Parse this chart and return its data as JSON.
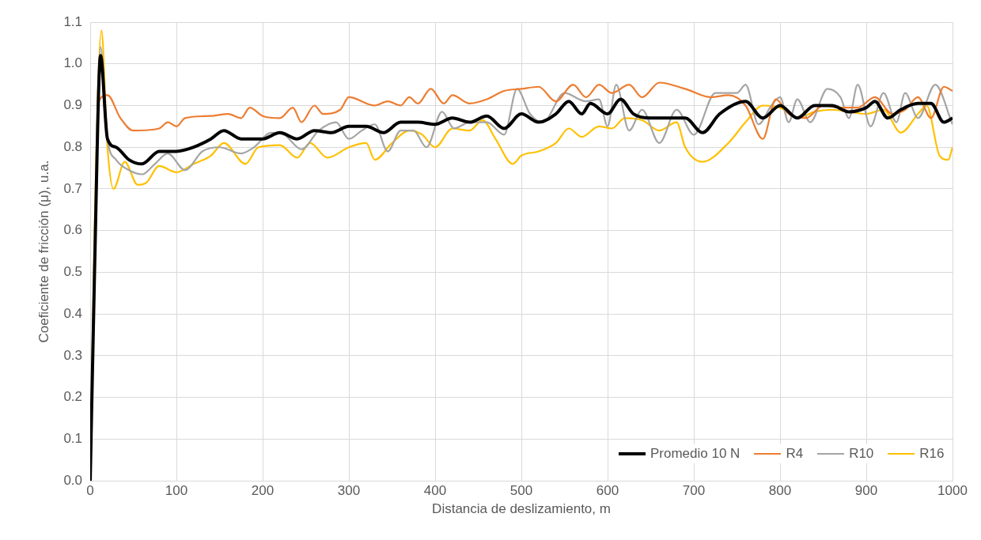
{
  "chart_data": {
    "type": "line",
    "xlabel": "Distancia de deslizamiento, m",
    "ylabel": "Coeficiente de fricción (μ), u.a.",
    "xlim": [
      0,
      1000
    ],
    "xticks": [
      0,
      100,
      200,
      300,
      400,
      500,
      600,
      700,
      800,
      900,
      1000
    ],
    "ylim": [
      0,
      1.1
    ],
    "yticks": [
      {
        "value": 0,
        "label": "0.0"
      },
      {
        "value": 0.1,
        "label": "0.1"
      },
      {
        "value": 0.2,
        "label": "0.2"
      },
      {
        "value": 0.3,
        "label": "0.3"
      },
      {
        "value": 0.4,
        "label": "0.4"
      },
      {
        "value": 0.5,
        "label": "0.5"
      },
      {
        "value": 0.6,
        "label": "0.6"
      },
      {
        "value": 0.7,
        "label": "0.7"
      },
      {
        "value": 0.8,
        "label": "0.8"
      },
      {
        "value": 0.9,
        "label": "0.9"
      },
      {
        "value": 1,
        "label": "1.0"
      },
      {
        "value": 1.1,
        "label": "1.1"
      }
    ],
    "grid": true,
    "legend": "bottom right",
    "marker": "none",
    "line_style": "solid",
    "series": [
      {
        "name": "Promedio 10 N",
        "color": "#000000",
        "x": [
          0,
          5,
          12,
          20,
          30,
          45,
          60,
          80,
          100,
          120,
          140,
          155,
          175,
          200,
          220,
          240,
          260,
          280,
          300,
          320,
          340,
          360,
          380,
          400,
          420,
          440,
          460,
          480,
          500,
          520,
          540,
          555,
          570,
          580,
          600,
          615,
          630,
          650,
          670,
          690,
          710,
          730,
          760,
          780,
          800,
          820,
          840,
          860,
          880,
          900,
          910,
          925,
          940,
          960,
          975,
          990,
          1000
        ],
        "values": [
          0,
          0.5,
          1.02,
          0.82,
          0.8,
          0.77,
          0.76,
          0.79,
          0.79,
          0.8,
          0.82,
          0.84,
          0.82,
          0.82,
          0.835,
          0.82,
          0.84,
          0.835,
          0.85,
          0.85,
          0.835,
          0.86,
          0.86,
          0.855,
          0.87,
          0.86,
          0.875,
          0.845,
          0.88,
          0.86,
          0.88,
          0.91,
          0.88,
          0.905,
          0.88,
          0.915,
          0.88,
          0.87,
          0.87,
          0.87,
          0.835,
          0.88,
          0.91,
          0.87,
          0.9,
          0.87,
          0.9,
          0.9,
          0.885,
          0.895,
          0.91,
          0.87,
          0.89,
          0.905,
          0.905,
          0.86,
          0.87
        ]
      },
      {
        "name": "R4",
        "color": "#ed7d31",
        "x": [
          0,
          5,
          10,
          20,
          35,
          50,
          80,
          90,
          100,
          110,
          140,
          160,
          175,
          185,
          200,
          220,
          235,
          245,
          260,
          270,
          290,
          300,
          330,
          345,
          360,
          370,
          380,
          395,
          410,
          420,
          440,
          460,
          480,
          500,
          520,
          540,
          560,
          575,
          590,
          605,
          625,
          640,
          660,
          690,
          720,
          740,
          760,
          780,
          795,
          810,
          830,
          850,
          870,
          890,
          910,
          930,
          945,
          960,
          975,
          990,
          1000
        ],
        "values": [
          0,
          0.5,
          0.91,
          0.925,
          0.87,
          0.84,
          0.845,
          0.86,
          0.85,
          0.87,
          0.875,
          0.88,
          0.87,
          0.895,
          0.875,
          0.87,
          0.895,
          0.86,
          0.9,
          0.88,
          0.89,
          0.92,
          0.9,
          0.91,
          0.9,
          0.92,
          0.905,
          0.94,
          0.905,
          0.925,
          0.905,
          0.915,
          0.935,
          0.94,
          0.945,
          0.91,
          0.95,
          0.92,
          0.95,
          0.93,
          0.95,
          0.92,
          0.955,
          0.94,
          0.92,
          0.925,
          0.9,
          0.82,
          0.915,
          0.88,
          0.87,
          0.9,
          0.895,
          0.895,
          0.92,
          0.88,
          0.89,
          0.92,
          0.87,
          0.945,
          0.935
        ]
      },
      {
        "name": "R10",
        "color": "#a5a5a5",
        "x": [
          0,
          5,
          12,
          20,
          30,
          45,
          60,
          75,
          90,
          110,
          130,
          150,
          175,
          190,
          210,
          225,
          245,
          265,
          285,
          300,
          315,
          330,
          345,
          360,
          375,
          390,
          408,
          422,
          440,
          460,
          480,
          495,
          510,
          525,
          550,
          575,
          590,
          600,
          610,
          625,
          640,
          660,
          680,
          700,
          725,
          750,
          760,
          775,
          790,
          800,
          810,
          820,
          835,
          855,
          870,
          880,
          890,
          905,
          920,
          935,
          945,
          960,
          980,
          1000
        ],
        "values": [
          0,
          0.5,
          1.04,
          0.82,
          0.77,
          0.745,
          0.735,
          0.76,
          0.785,
          0.745,
          0.79,
          0.8,
          0.785,
          0.8,
          0.835,
          0.83,
          0.795,
          0.84,
          0.86,
          0.82,
          0.84,
          0.855,
          0.79,
          0.84,
          0.84,
          0.8,
          0.885,
          0.845,
          0.86,
          0.86,
          0.83,
          0.94,
          0.88,
          0.86,
          0.93,
          0.91,
          0.915,
          0.85,
          0.95,
          0.84,
          0.89,
          0.81,
          0.89,
          0.83,
          0.93,
          0.93,
          0.95,
          0.855,
          0.9,
          0.92,
          0.86,
          0.915,
          0.86,
          0.94,
          0.92,
          0.87,
          0.95,
          0.85,
          0.93,
          0.86,
          0.93,
          0.87,
          0.95,
          0.855
        ]
      },
      {
        "name": "R16",
        "color": "#ffc000",
        "x": [
          0,
          5,
          13,
          20,
          27,
          40,
          55,
          65,
          80,
          100,
          120,
          140,
          155,
          180,
          195,
          220,
          240,
          255,
          275,
          300,
          320,
          330,
          350,
          370,
          385,
          400,
          420,
          440,
          455,
          470,
          490,
          500,
          520,
          540,
          555,
          570,
          590,
          605,
          620,
          640,
          660,
          680,
          690,
          710,
          740,
          760,
          780,
          800,
          820,
          840,
          860,
          880,
          900,
          920,
          940,
          960,
          970,
          985,
          995,
          1000
        ],
        "values": [
          0,
          0.6,
          1.08,
          0.8,
          0.7,
          0.765,
          0.71,
          0.715,
          0.755,
          0.74,
          0.76,
          0.78,
          0.81,
          0.76,
          0.8,
          0.805,
          0.775,
          0.81,
          0.775,
          0.8,
          0.81,
          0.77,
          0.81,
          0.84,
          0.83,
          0.8,
          0.845,
          0.84,
          0.865,
          0.82,
          0.76,
          0.78,
          0.79,
          0.81,
          0.845,
          0.825,
          0.85,
          0.845,
          0.87,
          0.865,
          0.84,
          0.86,
          0.8,
          0.765,
          0.81,
          0.86,
          0.9,
          0.895,
          0.87,
          0.885,
          0.89,
          0.885,
          0.88,
          0.89,
          0.835,
          0.88,
          0.9,
          0.78,
          0.77,
          0.8
        ]
      }
    ]
  }
}
